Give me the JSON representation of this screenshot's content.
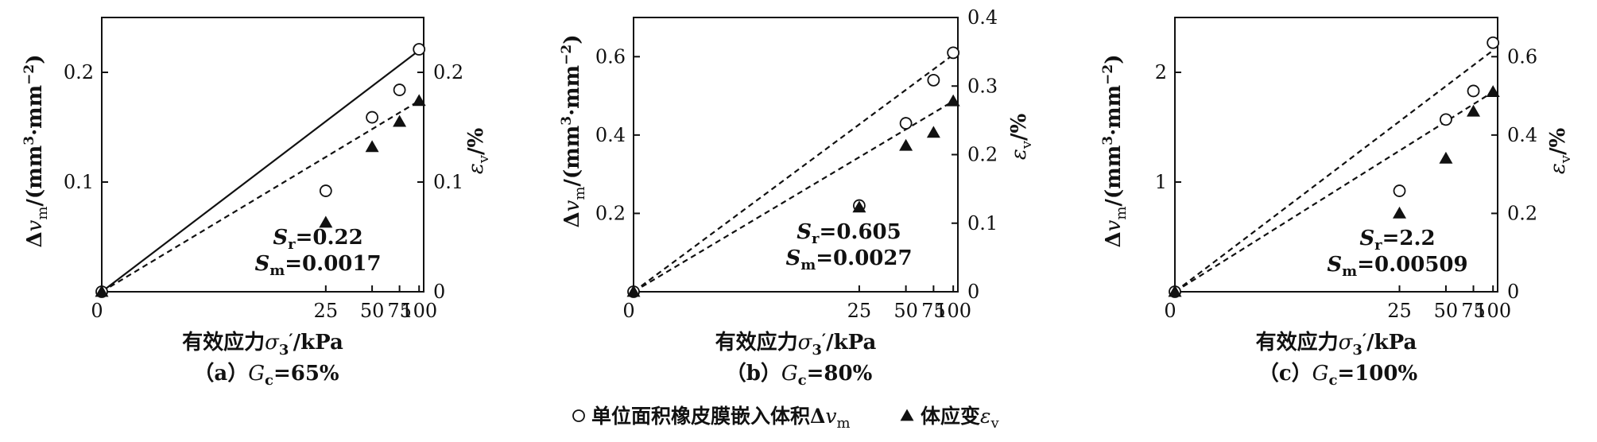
{
  "chart_data": [
    {
      "type": "scatter",
      "caption": "（a）Gc=65%",
      "caption_parts": {
        "prefix": "（a）",
        "var": "G",
        "sub": "c",
        "suffix": "=65%"
      },
      "xlabel": "有效应力σ3′/kPa",
      "xlabel_parts": {
        "prefix": "有效应力",
        "var": "σ",
        "sub": "3",
        "prime": "′",
        "suffix": "/kPa"
      },
      "ylabel": "Δvm/(mm³·mm⁻²)",
      "y2label": "εv/%",
      "x_scale": "log",
      "x_ticks": [
        0,
        25,
        50,
        75,
        100
      ],
      "x_tick_labels": [
        "0",
        "25",
        "50",
        "75",
        100
      ],
      "xlim": [
        0,
        107
      ],
      "ylim": [
        0,
        0.25
      ],
      "y_ticks": [
        0.1,
        0.2
      ],
      "y_tick_labels": [
        "0.1",
        "0.2"
      ],
      "y2lim": [
        0,
        0.25
      ],
      "y2_ticks": [
        0,
        0.1,
        0.2
      ],
      "y2_tick_labels": [
        "0",
        "0.1",
        "0.2"
      ],
      "annotations": [
        "Sr=0.22",
        "Sm=0.0017"
      ],
      "annotation_parts": [
        {
          "var": "S",
          "sub": "r",
          "value": "=0.22"
        },
        {
          "var": "S",
          "sub": "m",
          "value": "=0.0017"
        }
      ],
      "series": [
        {
          "name": "单位面积橡皮膜嵌入体积Δvm",
          "axis": "left",
          "marker": "open-circle",
          "fit_line": "solid",
          "x": [
            0,
            25,
            50,
            75,
            100
          ],
          "y": [
            0.0,
            0.092,
            0.159,
            0.184,
            0.221
          ],
          "fit": [
            [
              0,
              0.0
            ],
            [
              100,
              0.22
            ]
          ]
        },
        {
          "name": "体应变εv",
          "axis": "right",
          "marker": "filled-triangle",
          "fit_line": "dashed",
          "x": [
            0,
            25,
            50,
            75,
            100
          ],
          "y": [
            0.0,
            0.063,
            0.132,
            0.155,
            0.174
          ],
          "fit": [
            [
              0,
              0.0
            ],
            [
              100,
              0.174
            ]
          ]
        }
      ]
    },
    {
      "type": "scatter",
      "caption": "（b）Gc=80%",
      "caption_parts": {
        "prefix": "（b）",
        "var": "G",
        "sub": "c",
        "suffix": "=80%"
      },
      "xlabel": "有效应力σ3′/kPa",
      "xlabel_parts": {
        "prefix": "有效应力",
        "var": "σ",
        "sub": "3",
        "prime": "′",
        "suffix": "/kPa"
      },
      "ylabel": "Δvm/(mm³·mm⁻²)",
      "y2label": "εv/%",
      "x_scale": "log",
      "x_ticks": [
        0,
        25,
        50,
        75,
        100
      ],
      "x_tick_labels": [
        "0",
        "25",
        "50",
        "75",
        100
      ],
      "xlim": [
        0,
        107
      ],
      "ylim": [
        0,
        0.7
      ],
      "y_ticks": [
        0.2,
        0.4,
        0.6
      ],
      "y_tick_labels": [
        "0.2",
        "0.4",
        "0.6"
      ],
      "y2lim": [
        0,
        0.4
      ],
      "y2_ticks": [
        0,
        0.1,
        0.2,
        0.3,
        0.4
      ],
      "y2_tick_labels": [
        "0",
        "0.1",
        "0.2",
        "0.3",
        "0.4"
      ],
      "annotations": [
        "Sr=0.605",
        "Sm=0.0027"
      ],
      "annotation_parts": [
        {
          "var": "S",
          "sub": "r",
          "value": "=0.605"
        },
        {
          "var": "S",
          "sub": "m",
          "value": "=0.0027"
        }
      ],
      "series": [
        {
          "name": "单位面积橡皮膜嵌入体积Δvm",
          "axis": "left",
          "marker": "open-circle",
          "fit_line": "dashed",
          "x": [
            0,
            25,
            50,
            75,
            100
          ],
          "y": [
            0.0,
            0.22,
            0.43,
            0.54,
            0.61
          ],
          "fit": [
            [
              0,
              0.0
            ],
            [
              100,
              0.605
            ]
          ]
        },
        {
          "name": "体应变εv",
          "axis": "right",
          "marker": "filled-triangle",
          "fit_line": "dashed",
          "x": [
            0,
            25,
            50,
            75,
            100
          ],
          "y": [
            0.0,
            0.123,
            0.213,
            0.232,
            0.278
          ],
          "fit": [
            [
              0,
              0.0
            ],
            [
              100,
              0.278
            ]
          ]
        }
      ]
    },
    {
      "type": "scatter",
      "caption": "（c）Gc=100%",
      "caption_parts": {
        "prefix": "（c）",
        "var": "G",
        "sub": "c",
        "suffix": "=100%"
      },
      "xlabel": "有效应力σ3′/kPa",
      "xlabel_parts": {
        "prefix": "有效应力",
        "var": "σ",
        "sub": "3",
        "prime": "′",
        "suffix": "/kPa"
      },
      "ylabel": "Δvm/(mm³·mm⁻²)",
      "y2label": "εv/%",
      "x_scale": "log",
      "x_ticks": [
        0,
        25,
        50,
        75,
        100
      ],
      "x_tick_labels": [
        "0",
        "25",
        "50",
        "75",
        100
      ],
      "xlim": [
        0,
        107
      ],
      "ylim": [
        0,
        2.5
      ],
      "y_ticks": [
        1,
        2
      ],
      "y_tick_labels": [
        "1",
        "2"
      ],
      "y2lim": [
        0,
        0.7
      ],
      "y2_ticks": [
        0,
        0.2,
        0.4,
        0.6
      ],
      "y2_tick_labels": [
        "0",
        "0.2",
        "0.4",
        "0.6"
      ],
      "annotations": [
        "Sr=2.2",
        "Sm=0.00509"
      ],
      "annotation_parts": [
        {
          "var": "S",
          "sub": "r",
          "value": "=2.2"
        },
        {
          "var": "S",
          "sub": "m",
          "value": "=0.00509"
        }
      ],
      "series": [
        {
          "name": "单位面积橡皮膜嵌入体积Δvm",
          "axis": "left",
          "marker": "open-circle",
          "fit_line": "dashed",
          "x": [
            0,
            25,
            50,
            75,
            100
          ],
          "y": [
            0.0,
            0.92,
            1.57,
            1.83,
            2.27
          ],
          "fit": [
            [
              0,
              0.0
            ],
            [
              100,
              2.2
            ]
          ]
        },
        {
          "name": "体应变εv",
          "axis": "right",
          "marker": "filled-triangle",
          "fit_line": "dashed",
          "x": [
            0,
            25,
            50,
            75,
            100
          ],
          "y": [
            0.0,
            0.2,
            0.34,
            0.46,
            0.51
          ],
          "fit": [
            [
              0,
              0.0
            ],
            [
              100,
              0.51
            ]
          ]
        }
      ]
    }
  ],
  "legend": {
    "placement": "bottom-center",
    "entries": [
      {
        "marker": "open-circle",
        "label": "单位面积橡皮膜嵌入体积Δvm",
        "parts": {
          "prefix": "单位面积橡皮膜嵌入体积Δ",
          "var": "v",
          "sub": "m"
        }
      },
      {
        "marker": "filled-triangle",
        "label": "体应变εv",
        "parts": {
          "prefix": "体应变",
          "var": "ε",
          "sub": "v"
        }
      }
    ]
  },
  "colors": {
    "ink": "#111111",
    "background": "#ffffff"
  }
}
